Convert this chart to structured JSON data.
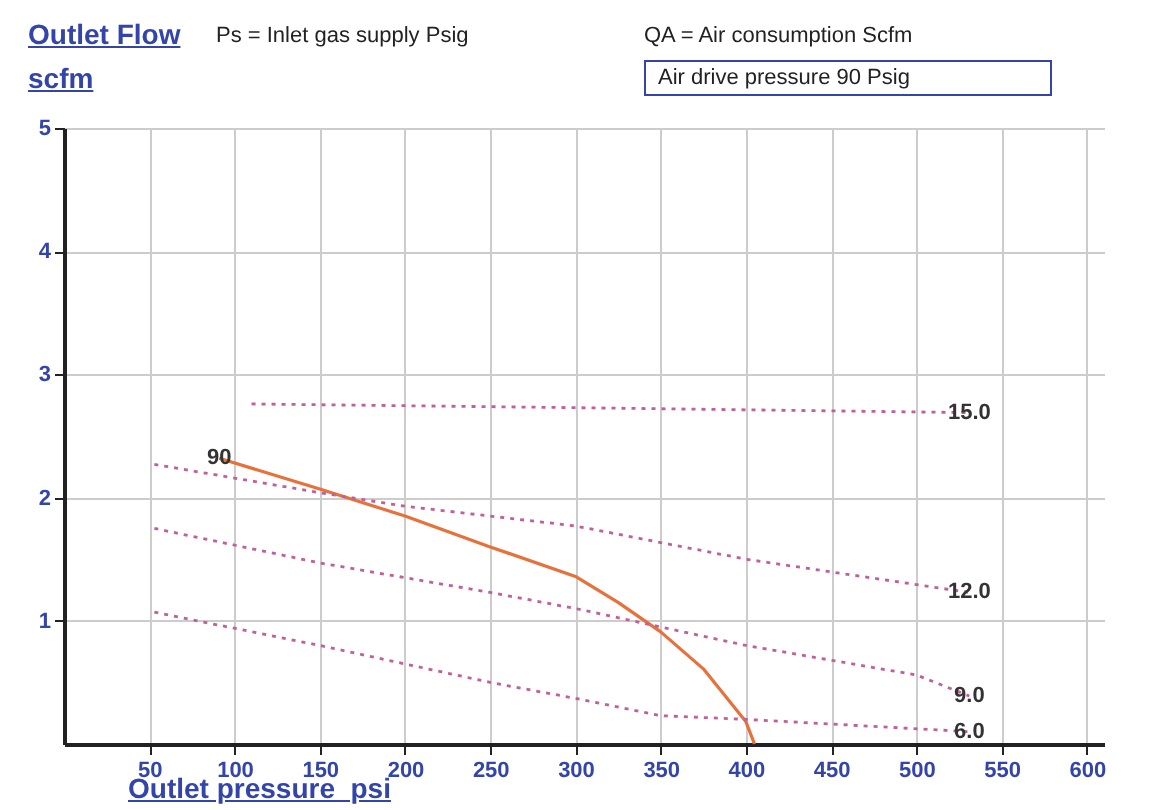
{
  "chart_data": {
    "type": "line",
    "xlabel": "Outlet pressure  psi",
    "ylabel": "Outlet Flow scfm",
    "annotations": [
      "Ps = Inlet gas supply  Psig",
      "QA = Air consumption  Scfm",
      "Air drive pressure  90 Psig"
    ],
    "series": [
      {
        "name": "90",
        "color": "#e8703a",
        "line_style": "solid",
        "x": [
          91,
          150,
          200,
          250,
          300,
          325,
          350,
          375,
          400,
          405
        ],
        "values": [
          2.32,
          2.07,
          1.85,
          1.6,
          1.36,
          1.15,
          0.91,
          0.61,
          0.18,
          0
        ]
      },
      {
        "name": "15.0",
        "color": "#c0609a",
        "line_style": "dotted",
        "x": [
          110,
          300,
          531
        ],
        "values": [
          2.76,
          2.73,
          2.69
        ]
      },
      {
        "name": "12.0",
        "color": "#c0609a",
        "line_style": "dotted",
        "x": [
          53,
          150,
          200,
          250,
          300,
          400,
          531
        ],
        "values": [
          2.27,
          2.04,
          1.93,
          1.85,
          1.77,
          1.5,
          1.23
        ]
      },
      {
        "name": "9.0",
        "color": "#c0609a",
        "line_style": "dotted",
        "x": [
          53,
          150,
          250,
          300,
          400,
          500,
          531
        ],
        "values": [
          1.75,
          1.47,
          1.23,
          1.1,
          0.8,
          0.56,
          0.39
        ]
      },
      {
        "name": "6.0",
        "color": "#c0609a",
        "line_style": "dotted",
        "x": [
          53,
          150,
          250,
          300,
          350,
          400,
          531
        ],
        "values": [
          1.07,
          0.8,
          0.5,
          0.37,
          0.23,
          0.2,
          0.1
        ]
      }
    ],
    "xlim": [
      0,
      610
    ],
    "xticks": [
      50,
      100,
      150,
      200,
      250,
      300,
      350,
      400,
      450,
      500,
      550,
      600
    ],
    "ylim": [
      0,
      5
    ],
    "yticks": [
      1,
      2,
      3,
      4,
      5
    ],
    "grid": true,
    "marker": "none"
  }
}
